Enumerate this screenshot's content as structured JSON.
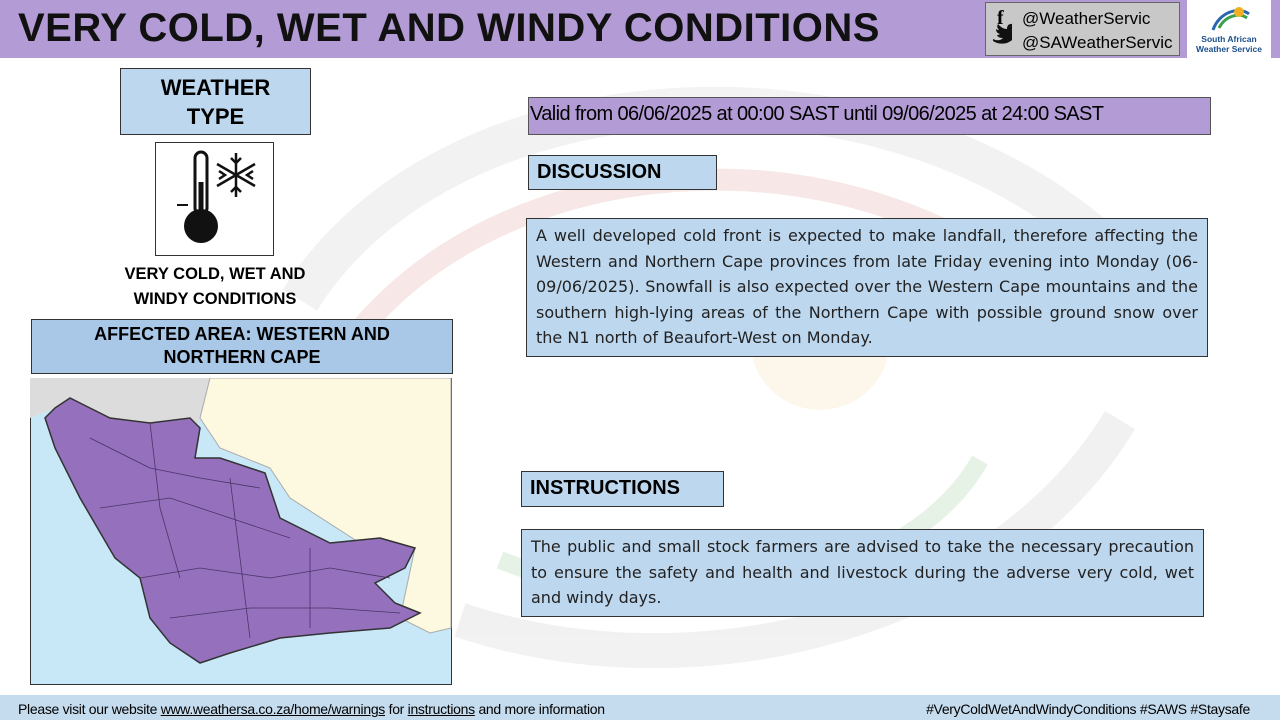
{
  "header": {
    "title": "VERY COLD, WET AND WINDY CONDITIONS",
    "social": [
      "@WeatherServic",
      "@SAWeatherServic"
    ],
    "logo_text": [
      "South African",
      "Weather Service"
    ]
  },
  "weather_type": {
    "heading": "WEATHER TYPE",
    "label": "VERY COLD, WET AND WINDY CONDITIONS"
  },
  "affected_area": "AFFECTED AREA: WESTERN AND NORTHERN CAPE",
  "validity": "Valid from 06/06/2025 at 00:00 SAST until 09/06/2025 at 24:00 SAST",
  "discussion": {
    "heading": "DISCUSSION",
    "text": "A well developed cold front is expected to make landfall, therefore affecting the Western and Northern Cape provinces from late Friday evening into Monday (06-09/06/2025). Snowfall is also expected over the Western Cape mountains and the southern high-lying areas of the Northern Cape with possible ground snow over the N1 north of Beaufort-West on Monday."
  },
  "instructions": {
    "heading": "INSTRUCTIONS",
    "text": "The public and small stock farmers are advised to take the necessary precaution to ensure the safety and health and livestock during the adverse very cold, wet and windy days."
  },
  "footer": {
    "note": [
      "Please visit our website ",
      "www.weathersa.co.za/home/warnings",
      " for ",
      "instructions",
      " and more information"
    ],
    "hashtags": "#VeryColdWetAndWindyConditions #SAWS #Staysafe"
  }
}
